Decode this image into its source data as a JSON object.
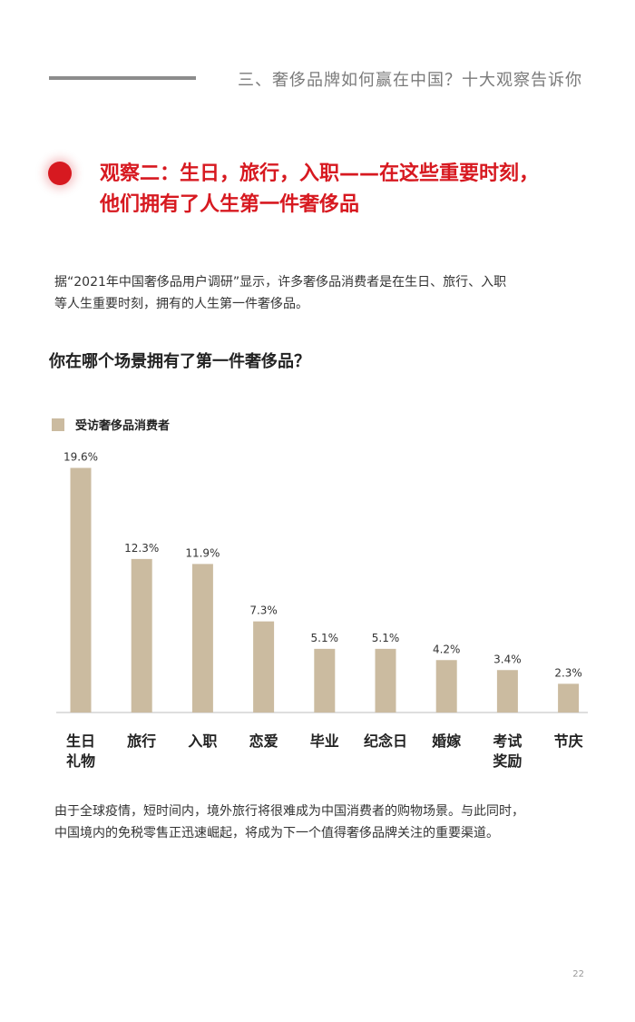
{
  "header": {
    "section_title": "三、奢侈品牌如何赢在中国？十大观察告诉你"
  },
  "observation": {
    "line1": "观察二：生日，旅行，入职——在这些重要时刻，",
    "line2": "他们拥有了人生第一件奢侈品",
    "accent_color": "#d71920"
  },
  "intro": {
    "line1": "据“2021年中国奢侈品用户调研”显示，许多奢侈品消费者是在生日、旅行、入职",
    "line2": "等人生重要时刻，拥有的人生第一件奢侈品。"
  },
  "question": "你在哪个场景拥有了第一件奢侈品？",
  "chart_data": {
    "type": "bar",
    "title": "你在哪个场景拥有了第一件奢侈品？",
    "categories": [
      "生日\n礼物",
      "旅行",
      "入职",
      "恋爱",
      "毕业",
      "纪念日",
      "婚嫁",
      "考试\n奖励",
      "节庆"
    ],
    "series": [
      {
        "name": "受访奢侈品消费者",
        "values": [
          19.6,
          12.3,
          11.9,
          7.3,
          5.1,
          5.1,
          4.2,
          3.4,
          2.3
        ],
        "labels": [
          "19.6%",
          "12.3%",
          "11.9%",
          "7.3%",
          "5.1%",
          "5.1%",
          "4.2%",
          "3.4%",
          "2.3%"
        ],
        "color": "#cbbba0"
      }
    ],
    "ylim": [
      0,
      20
    ],
    "grid": false,
    "legend": "top-left"
  },
  "outro": {
    "line1": "由于全球疫情，短时间内，境外旅行将很难成为中国消费者的购物场景。与此同时，",
    "line2": "中国境内的免税零售正迅速崛起，将成为下一个值得奢侈品牌关注的重要渠道。"
  },
  "page_number": "22"
}
